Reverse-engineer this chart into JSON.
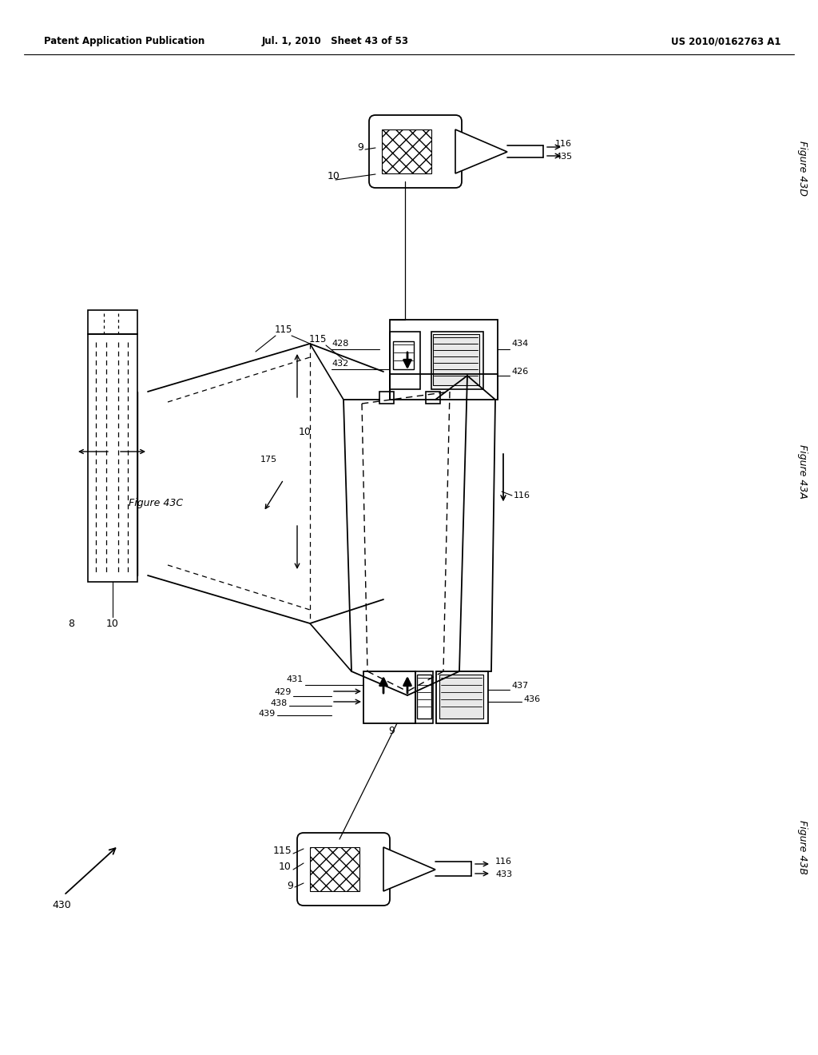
{
  "bg_color": "#ffffff",
  "header_left": "Patent Application Publication",
  "header_center": "Jul. 1, 2010   Sheet 43 of 53",
  "header_right": "US 2010/0162763 A1"
}
